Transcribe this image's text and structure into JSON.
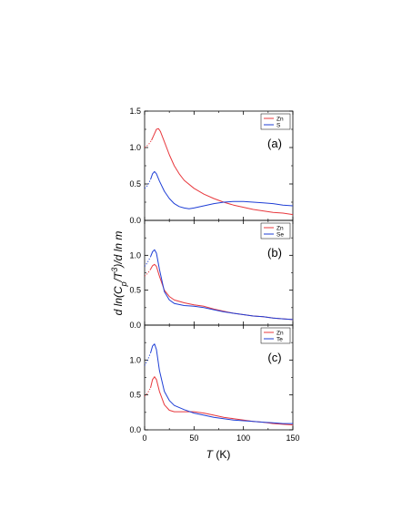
{
  "chart_data": {
    "type": "line",
    "shared_xlabel": "T (K)",
    "shared_ylabel": "d ln(Cp/T3)/d ln m",
    "xlim": [
      0,
      150
    ],
    "xticks": [
      "0",
      "50",
      "100",
      "150"
    ],
    "panels": [
      {
        "label": "(a)",
        "ylim": [
          0,
          1.5
        ],
        "yticks": [
          "0.0",
          "0.5",
          "1.0",
          "1.5"
        ],
        "legend_position": "top-right",
        "series": [
          {
            "name": "Zn",
            "color": "#e8383d",
            "dotted": [
              [
                0,
                1.0
              ],
              [
                4,
                1.04
              ],
              [
                7,
                1.1
              ]
            ],
            "values": [
              [
                7,
                1.1
              ],
              [
                9,
                1.16
              ],
              [
                12,
                1.25
              ],
              [
                14,
                1.26
              ],
              [
                16,
                1.22
              ],
              [
                20,
                1.08
              ],
              [
                25,
                0.9
              ],
              [
                30,
                0.75
              ],
              [
                35,
                0.64
              ],
              [
                40,
                0.55
              ],
              [
                50,
                0.44
              ],
              [
                60,
                0.36
              ],
              [
                70,
                0.3
              ],
              [
                80,
                0.25
              ],
              [
                90,
                0.21
              ],
              [
                100,
                0.18
              ],
              [
                110,
                0.15
              ],
              [
                120,
                0.13
              ],
              [
                130,
                0.11
              ],
              [
                140,
                0.1
              ],
              [
                150,
                0.08
              ]
            ]
          },
          {
            "name": "S",
            "color": "#1f3fd6",
            "dotted": [
              [
                0,
                0.44
              ],
              [
                3,
                0.48
              ],
              [
                6,
                0.56
              ]
            ],
            "values": [
              [
                6,
                0.56
              ],
              [
                8,
                0.64
              ],
              [
                10,
                0.67
              ],
              [
                12,
                0.64
              ],
              [
                15,
                0.54
              ],
              [
                20,
                0.4
              ],
              [
                25,
                0.3
              ],
              [
                30,
                0.23
              ],
              [
                35,
                0.19
              ],
              [
                40,
                0.17
              ],
              [
                45,
                0.16
              ],
              [
                50,
                0.17
              ],
              [
                60,
                0.2
              ],
              [
                70,
                0.23
              ],
              [
                80,
                0.25
              ],
              [
                90,
                0.26
              ],
              [
                100,
                0.26
              ],
              [
                110,
                0.25
              ],
              [
                120,
                0.24
              ],
              [
                130,
                0.23
              ],
              [
                140,
                0.21
              ],
              [
                150,
                0.2
              ]
            ]
          }
        ]
      },
      {
        "label": "(b)",
        "ylim": [
          0,
          1.5
        ],
        "yticks": [
          "0.0",
          "0.5",
          "1.0"
        ],
        "legend_position": "top-right",
        "series": [
          {
            "name": "Zn",
            "color": "#e8383d",
            "dotted": [
              [
                0,
                0.7
              ],
              [
                3,
                0.74
              ],
              [
                6,
                0.8
              ]
            ],
            "values": [
              [
                6,
                0.8
              ],
              [
                8,
                0.85
              ],
              [
                10,
                0.87
              ],
              [
                12,
                0.84
              ],
              [
                15,
                0.7
              ],
              [
                20,
                0.5
              ],
              [
                25,
                0.41
              ],
              [
                30,
                0.36
              ],
              [
                40,
                0.32
              ],
              [
                50,
                0.29
              ],
              [
                60,
                0.27
              ],
              [
                70,
                0.23
              ],
              [
                80,
                0.2
              ],
              [
                90,
                0.17
              ],
              [
                100,
                0.15
              ],
              [
                110,
                0.13
              ],
              [
                120,
                0.12
              ],
              [
                130,
                0.1
              ],
              [
                140,
                0.09
              ],
              [
                150,
                0.08
              ]
            ]
          },
          {
            "name": "Se",
            "color": "#1f3fd6",
            "dotted": [
              [
                0,
                0.84
              ],
              [
                3,
                0.9
              ],
              [
                6,
                0.98
              ]
            ],
            "values": [
              [
                6,
                0.98
              ],
              [
                8,
                1.05
              ],
              [
                10,
                1.08
              ],
              [
                12,
                1.03
              ],
              [
                15,
                0.8
              ],
              [
                20,
                0.48
              ],
              [
                25,
                0.36
              ],
              [
                30,
                0.31
              ],
              [
                40,
                0.28
              ],
              [
                50,
                0.27
              ],
              [
                60,
                0.25
              ],
              [
                70,
                0.22
              ],
              [
                80,
                0.19
              ],
              [
                90,
                0.17
              ],
              [
                100,
                0.15
              ],
              [
                110,
                0.13
              ],
              [
                120,
                0.12
              ],
              [
                130,
                0.1
              ],
              [
                140,
                0.09
              ],
              [
                150,
                0.08
              ]
            ]
          }
        ]
      },
      {
        "label": "(c)",
        "ylim": [
          0,
          1.5
        ],
        "yticks": [
          "0.0",
          "0.5",
          "1.0"
        ],
        "legend_position": "top-right",
        "series": [
          {
            "name": "Zn",
            "color": "#e8383d",
            "dotted": [
              [
                0,
                0.48
              ],
              [
                3,
                0.53
              ],
              [
                6,
                0.6
              ]
            ],
            "values": [
              [
                6,
                0.6
              ],
              [
                8,
                0.72
              ],
              [
                10,
                0.76
              ],
              [
                12,
                0.72
              ],
              [
                15,
                0.55
              ],
              [
                20,
                0.36
              ],
              [
                25,
                0.28
              ],
              [
                30,
                0.26
              ],
              [
                40,
                0.26
              ],
              [
                50,
                0.26
              ],
              [
                60,
                0.24
              ],
              [
                70,
                0.21
              ],
              [
                80,
                0.18
              ],
              [
                90,
                0.16
              ],
              [
                100,
                0.14
              ],
              [
                110,
                0.12
              ],
              [
                120,
                0.11
              ],
              [
                130,
                0.09
              ],
              [
                140,
                0.08
              ],
              [
                150,
                0.07
              ]
            ]
          },
          {
            "name": "Te",
            "color": "#1f3fd6",
            "dotted": [
              [
                0,
                0.92
              ],
              [
                3,
                1.0
              ],
              [
                6,
                1.1
              ]
            ],
            "values": [
              [
                6,
                1.1
              ],
              [
                8,
                1.2
              ],
              [
                10,
                1.23
              ],
              [
                12,
                1.15
              ],
              [
                15,
                0.85
              ],
              [
                20,
                0.55
              ],
              [
                25,
                0.42
              ],
              [
                30,
                0.35
              ],
              [
                40,
                0.29
              ],
              [
                50,
                0.24
              ],
              [
                60,
                0.21
              ],
              [
                70,
                0.18
              ],
              [
                80,
                0.16
              ],
              [
                90,
                0.14
              ],
              [
                100,
                0.13
              ],
              [
                110,
                0.12
              ],
              [
                120,
                0.11
              ],
              [
                130,
                0.1
              ],
              [
                140,
                0.09
              ],
              [
                150,
                0.09
              ]
            ]
          }
        ]
      }
    ]
  }
}
